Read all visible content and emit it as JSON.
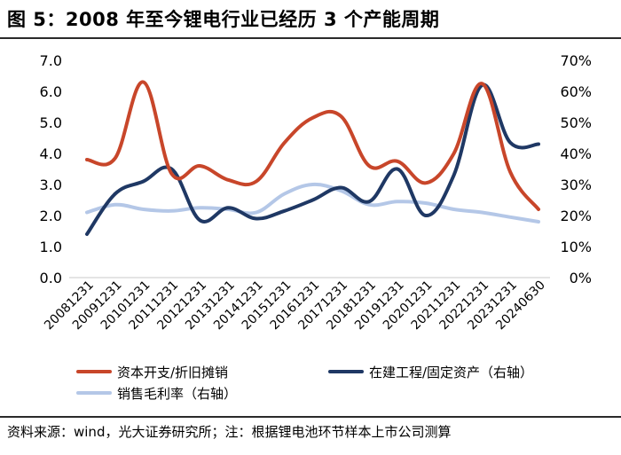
{
  "title": "图 5：2008 年至今锂电行业已经历 3 个产能周期",
  "source": "资料来源：wind，光大证券研究所；注：根据锂电池环节样本上市公司测算",
  "chart_data": {
    "type": "line",
    "categories": [
      "20081231",
      "20091231",
      "20101231",
      "20111231",
      "20121231",
      "20131231",
      "20141231",
      "20151231",
      "20161231",
      "20171231",
      "20181231",
      "20191231",
      "20201231",
      "20211231",
      "20221231",
      "20231231",
      "20240630"
    ],
    "y_left": {
      "min": 0,
      "max": 7,
      "ticks": [
        "0.0",
        "1.0",
        "2.0",
        "3.0",
        "4.0",
        "5.0",
        "6.0",
        "7.0"
      ]
    },
    "y_right": {
      "min": 0,
      "max": 70,
      "ticks": [
        "0%",
        "10%",
        "20%",
        "30%",
        "40%",
        "50%",
        "60%",
        "70%"
      ]
    },
    "series": [
      {
        "name": "资本开支/折旧摊销",
        "axis": "left",
        "color": "#c8462a",
        "values": [
          3.8,
          3.85,
          6.3,
          3.35,
          3.6,
          3.15,
          3.1,
          4.35,
          5.15,
          5.2,
          3.6,
          3.75,
          3.05,
          4.0,
          6.25,
          3.4,
          2.2
        ]
      },
      {
        "name": "在建工程/固定资产（右轴）",
        "axis": "right",
        "color": "#1f3864",
        "values": [
          14,
          27,
          31,
          35,
          18.5,
          22.5,
          19,
          21.5,
          25,
          29,
          24.5,
          35,
          20,
          33,
          62,
          43.5,
          43
        ]
      },
      {
        "name": "销售毛利率（右轴）",
        "axis": "right",
        "color": "#b4c7e7",
        "values": [
          21,
          23.5,
          22,
          21.5,
          22.5,
          22,
          21,
          27,
          30,
          28,
          23.5,
          24.5,
          24,
          22,
          21,
          19.5,
          18
        ]
      }
    ]
  }
}
